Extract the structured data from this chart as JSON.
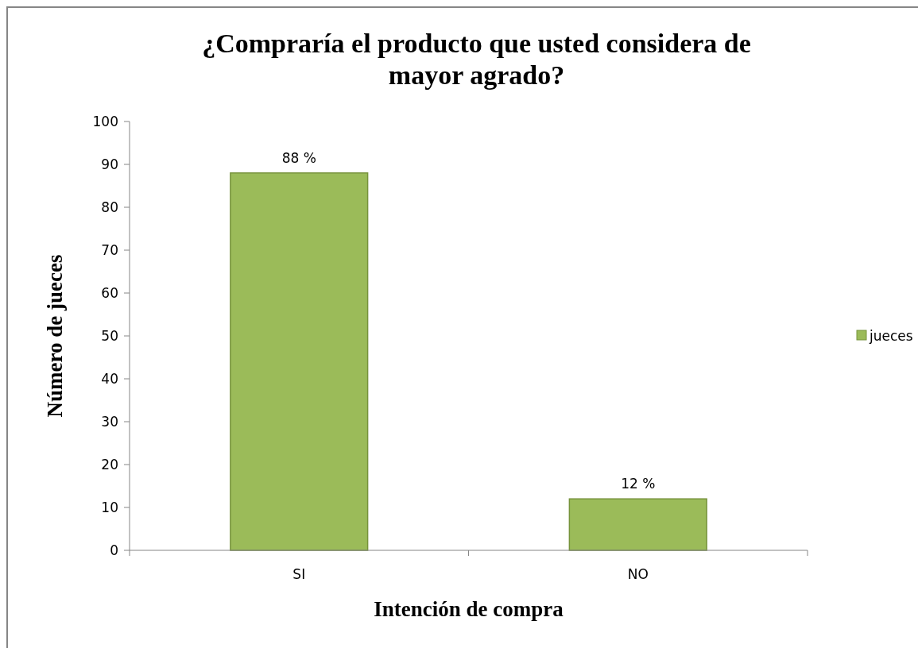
{
  "chart_data": {
    "type": "bar",
    "title": "¿Compraría el producto que usted considera de mayor agrado?",
    "xlabel": "Intención de compra",
    "ylabel": "Número de jueces",
    "categories": [
      "SI",
      "NO"
    ],
    "series": [
      {
        "name": "jueces",
        "color": "#9bbb59",
        "values": [
          88,
          12
        ],
        "value_labels": [
          "88 %",
          "12 %"
        ]
      }
    ],
    "ylim": [
      0,
      100
    ],
    "yticks": [
      0,
      10,
      20,
      30,
      40,
      50,
      60,
      70,
      80,
      90,
      100
    ],
    "grid": false,
    "legend": "right"
  }
}
